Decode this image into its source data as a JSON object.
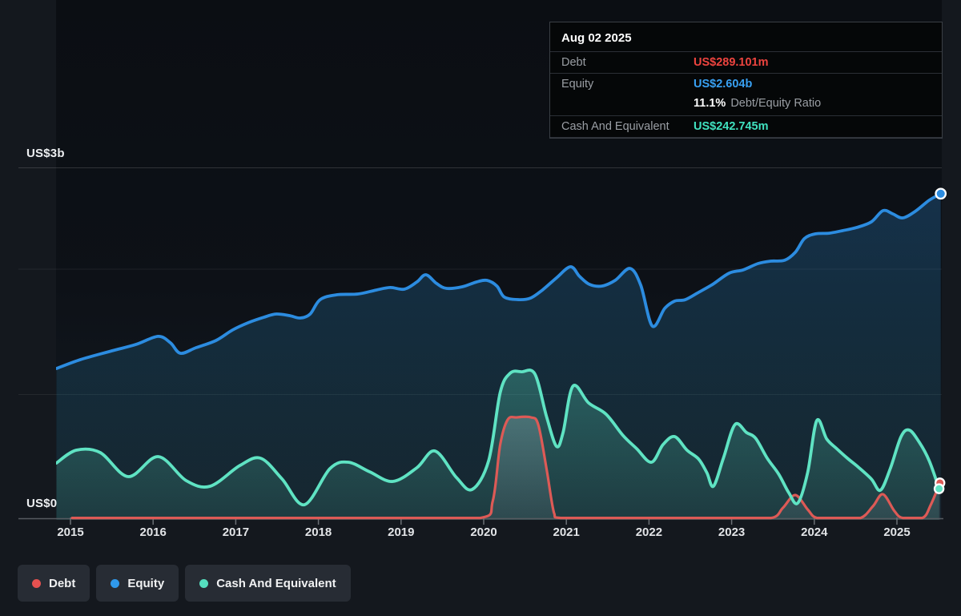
{
  "tooltip": {
    "date": "Aug 02 2025",
    "rows": [
      {
        "label": "Debt",
        "value": "US$289.101m",
        "color": "#ee443f"
      },
      {
        "label": "Equity",
        "value": "US$2.604b",
        "color": "#38a0f2"
      },
      {
        "label": "Cash And Equivalent",
        "value": "US$242.745m",
        "color": "#40e2c0"
      }
    ],
    "ratio_value": "11.1%",
    "ratio_label": "Debt/Equity Ratio"
  },
  "axis": {
    "y_top_label": "US$3b",
    "y_bottom_label": "US$0",
    "x_labels": [
      "2015",
      "2016",
      "2017",
      "2018",
      "2019",
      "2020",
      "2021",
      "2022",
      "2023",
      "2024",
      "2025"
    ]
  },
  "legend": {
    "items": [
      {
        "label": "Debt",
        "color": "#e65150"
      },
      {
        "label": "Equity",
        "color": "#2f99ec"
      },
      {
        "label": "Cash And Equivalent",
        "color": "#55dfbf"
      }
    ]
  },
  "chart_data": {
    "type": "area",
    "unit": "US$ billions",
    "x_range": [
      2014.82,
      2025.55
    ],
    "y_axis": {
      "min": 0,
      "max": 3,
      "tick_labels": [
        "US$0",
        "US$3b"
      ],
      "gridlines_at_b": [
        1,
        2
      ]
    },
    "x_tick_years": [
      2015,
      2016,
      2017,
      2018,
      2019,
      2020,
      2021,
      2022,
      2023,
      2024,
      2025
    ],
    "legend_position": "bottom-left",
    "series": [
      {
        "name": "Equity",
        "color": "#2c8ce0",
        "fill": "#2d88d6",
        "last_value_label": "US$2.604b",
        "points": [
          [
            2014.83,
            1.205
          ],
          [
            2015.12,
            1.276
          ],
          [
            2015.5,
            1.346
          ],
          [
            2015.79,
            1.397
          ],
          [
            2016.06,
            1.462
          ],
          [
            2016.21,
            1.41
          ],
          [
            2016.33,
            1.327
          ],
          [
            2016.52,
            1.372
          ],
          [
            2016.76,
            1.429
          ],
          [
            2016.96,
            1.513
          ],
          [
            2017.15,
            1.571
          ],
          [
            2017.34,
            1.615
          ],
          [
            2017.49,
            1.641
          ],
          [
            2017.65,
            1.628
          ],
          [
            2017.78,
            1.609
          ],
          [
            2017.9,
            1.641
          ],
          [
            2018.02,
            1.756
          ],
          [
            2018.22,
            1.795
          ],
          [
            2018.48,
            1.801
          ],
          [
            2018.7,
            1.833
          ],
          [
            2018.87,
            1.853
          ],
          [
            2019.04,
            1.84
          ],
          [
            2019.19,
            1.897
          ],
          [
            2019.3,
            1.955
          ],
          [
            2019.43,
            1.885
          ],
          [
            2019.55,
            1.846
          ],
          [
            2019.74,
            1.859
          ],
          [
            2019.91,
            1.897
          ],
          [
            2020.04,
            1.91
          ],
          [
            2020.16,
            1.865
          ],
          [
            2020.25,
            1.776
          ],
          [
            2020.43,
            1.756
          ],
          [
            2020.57,
            1.769
          ],
          [
            2020.71,
            1.833
          ],
          [
            2020.88,
            1.93
          ],
          [
            2021.05,
            2.019
          ],
          [
            2021.16,
            1.942
          ],
          [
            2021.28,
            1.878
          ],
          [
            2021.43,
            1.865
          ],
          [
            2021.59,
            1.91
          ],
          [
            2021.77,
            2.006
          ],
          [
            2021.9,
            1.872
          ],
          [
            2022.04,
            1.545
          ],
          [
            2022.19,
            1.686
          ],
          [
            2022.31,
            1.744
          ],
          [
            2022.44,
            1.756
          ],
          [
            2022.6,
            1.814
          ],
          [
            2022.77,
            1.878
          ],
          [
            2022.97,
            1.968
          ],
          [
            2023.14,
            1.994
          ],
          [
            2023.32,
            2.045
          ],
          [
            2023.47,
            2.064
          ],
          [
            2023.64,
            2.071
          ],
          [
            2023.77,
            2.135
          ],
          [
            2023.88,
            2.244
          ],
          [
            2024.01,
            2.282
          ],
          [
            2024.18,
            2.288
          ],
          [
            2024.34,
            2.308
          ],
          [
            2024.51,
            2.333
          ],
          [
            2024.69,
            2.378
          ],
          [
            2024.83,
            2.468
          ],
          [
            2024.95,
            2.442
          ],
          [
            2025.07,
            2.41
          ],
          [
            2025.22,
            2.462
          ],
          [
            2025.39,
            2.551
          ],
          [
            2025.53,
            2.604
          ]
        ]
      },
      {
        "name": "Cash And Equivalent",
        "color": "#5fe3c3",
        "fill": "#5ce0c0",
        "last_value_label": "US$242.745m",
        "points": [
          [
            2014.83,
            0.449
          ],
          [
            2015.07,
            0.551
          ],
          [
            2015.36,
            0.532
          ],
          [
            2015.7,
            0.34
          ],
          [
            2016.06,
            0.5
          ],
          [
            2016.4,
            0.308
          ],
          [
            2016.69,
            0.263
          ],
          [
            2017.05,
            0.429
          ],
          [
            2017.3,
            0.487
          ],
          [
            2017.56,
            0.321
          ],
          [
            2017.83,
            0.115
          ],
          [
            2018.14,
            0.404
          ],
          [
            2018.36,
            0.455
          ],
          [
            2018.62,
            0.378
          ],
          [
            2018.9,
            0.301
          ],
          [
            2019.19,
            0.41
          ],
          [
            2019.41,
            0.545
          ],
          [
            2019.67,
            0.333
          ],
          [
            2019.86,
            0.237
          ],
          [
            2020.06,
            0.468
          ],
          [
            2020.2,
            1.013
          ],
          [
            2020.32,
            1.167
          ],
          [
            2020.46,
            1.179
          ],
          [
            2020.62,
            1.16
          ],
          [
            2020.76,
            0.821
          ],
          [
            2020.88,
            0.583
          ],
          [
            2020.96,
            0.692
          ],
          [
            2021.08,
            1.064
          ],
          [
            2021.27,
            0.929
          ],
          [
            2021.48,
            0.84
          ],
          [
            2021.68,
            0.673
          ],
          [
            2021.85,
            0.564
          ],
          [
            2022.03,
            0.455
          ],
          [
            2022.17,
            0.596
          ],
          [
            2022.31,
            0.66
          ],
          [
            2022.46,
            0.551
          ],
          [
            2022.6,
            0.481
          ],
          [
            2022.7,
            0.372
          ],
          [
            2022.78,
            0.263
          ],
          [
            2022.9,
            0.487
          ],
          [
            2023.04,
            0.756
          ],
          [
            2023.18,
            0.692
          ],
          [
            2023.29,
            0.647
          ],
          [
            2023.43,
            0.487
          ],
          [
            2023.57,
            0.359
          ],
          [
            2023.69,
            0.212
          ],
          [
            2023.8,
            0.128
          ],
          [
            2023.92,
            0.372
          ],
          [
            2024.03,
            0.788
          ],
          [
            2024.15,
            0.641
          ],
          [
            2024.27,
            0.564
          ],
          [
            2024.4,
            0.487
          ],
          [
            2024.53,
            0.417
          ],
          [
            2024.69,
            0.321
          ],
          [
            2024.8,
            0.231
          ],
          [
            2024.92,
            0.404
          ],
          [
            2025.05,
            0.66
          ],
          [
            2025.15,
            0.712
          ],
          [
            2025.27,
            0.615
          ],
          [
            2025.39,
            0.468
          ],
          [
            2025.51,
            0.243
          ]
        ]
      },
      {
        "name": "Debt",
        "color": "#dd5a56",
        "fill": "#dfe7f2",
        "last_value_label": "US$289.101m",
        "points": [
          [
            2015.02,
            0
          ],
          [
            2016,
            0
          ],
          [
            2017,
            0
          ],
          [
            2018,
            0
          ],
          [
            2019,
            0
          ],
          [
            2019.96,
            0
          ],
          [
            2020.11,
            0.147
          ],
          [
            2020.2,
            0.596
          ],
          [
            2020.29,
            0.795
          ],
          [
            2020.4,
            0.814
          ],
          [
            2020.57,
            0.814
          ],
          [
            2020.66,
            0.756
          ],
          [
            2020.76,
            0.404
          ],
          [
            2020.85,
            0.051
          ],
          [
            2020.93,
            0
          ],
          [
            2021.5,
            0
          ],
          [
            2022,
            0
          ],
          [
            2022.5,
            0
          ],
          [
            2023,
            0
          ],
          [
            2023.48,
            0
          ],
          [
            2023.62,
            0.09
          ],
          [
            2023.77,
            0.192
          ],
          [
            2023.92,
            0.077
          ],
          [
            2024.03,
            0
          ],
          [
            2024.3,
            0
          ],
          [
            2024.56,
            0
          ],
          [
            2024.71,
            0.103
          ],
          [
            2024.83,
            0.199
          ],
          [
            2024.97,
            0.064
          ],
          [
            2025.07,
            0
          ],
          [
            2025.31,
            0
          ],
          [
            2025.41,
            0.115
          ],
          [
            2025.52,
            0.289
          ]
        ]
      }
    ]
  }
}
